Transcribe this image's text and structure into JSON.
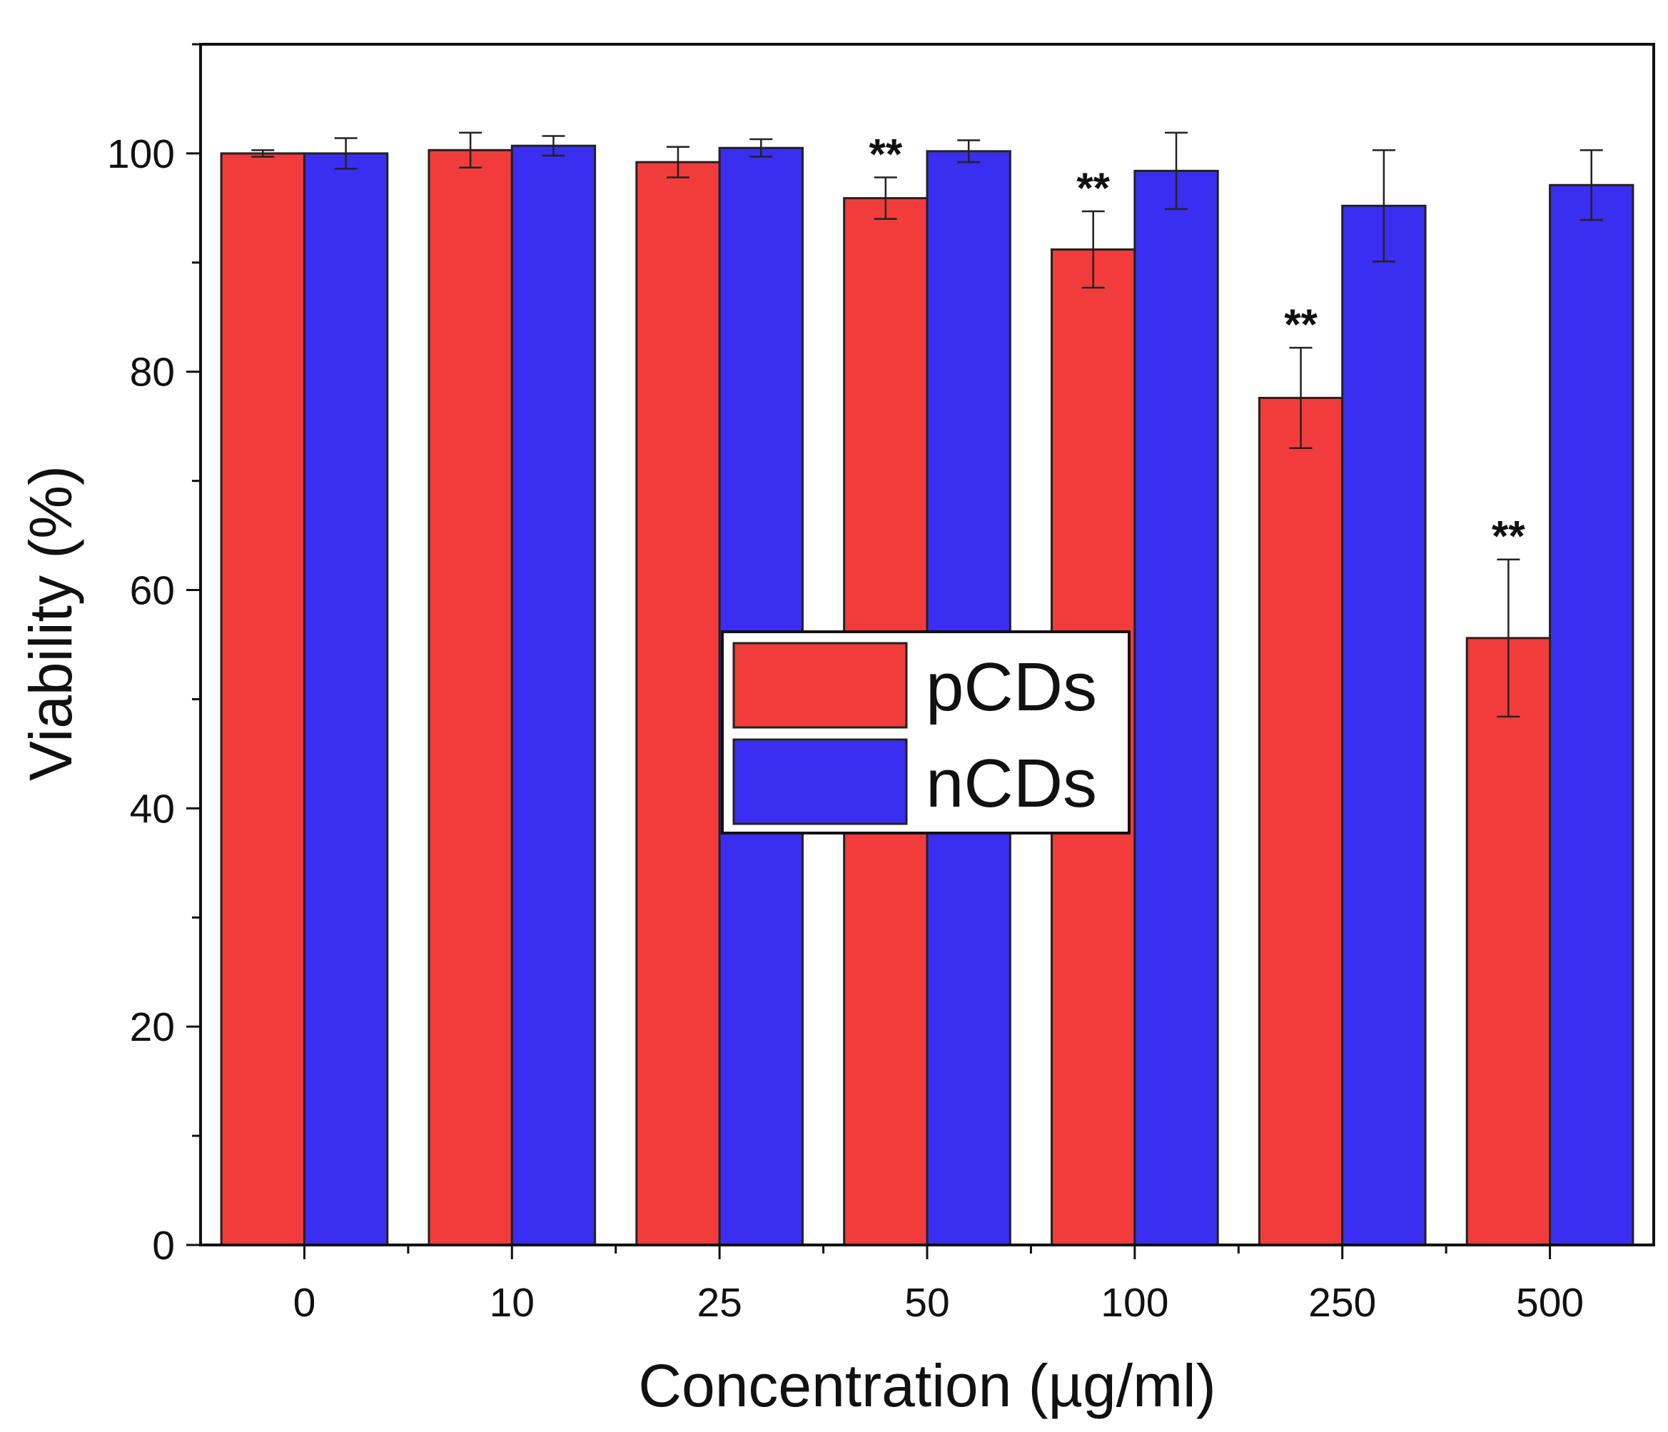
{
  "chart_data": {
    "type": "bar",
    "title": "",
    "xlabel": "Concentration (µg/ml)",
    "ylabel": "Viability (%)",
    "ylim": [
      0,
      110
    ],
    "yticks": [
      0,
      20,
      40,
      60,
      80,
      100
    ],
    "categories": [
      "0",
      "10",
      "25",
      "50",
      "100",
      "250",
      "500"
    ],
    "series": [
      {
        "name": "pCDs",
        "color": "#f23c3c",
        "values": [
          100.0,
          100.3,
          99.2,
          95.9,
          91.2,
          77.6,
          55.6
        ],
        "errors": [
          0.3,
          1.6,
          1.4,
          1.9,
          3.5,
          4.6,
          7.2
        ],
        "significance": [
          "",
          "",
          "",
          "**",
          "**",
          "**",
          "**"
        ]
      },
      {
        "name": "nCDs",
        "color": "#3a2ef0",
        "values": [
          100.0,
          100.7,
          100.5,
          100.2,
          98.4,
          95.2,
          97.1
        ],
        "errors": [
          1.4,
          0.9,
          0.8,
          1.0,
          3.5,
          5.1,
          3.2
        ],
        "significance": [
          "",
          "",
          "",
          "",
          "",
          "",
          ""
        ]
      }
    ],
    "legend": {
      "position": "center",
      "entries": [
        "pCDs",
        "nCDs"
      ]
    },
    "grid": false
  }
}
